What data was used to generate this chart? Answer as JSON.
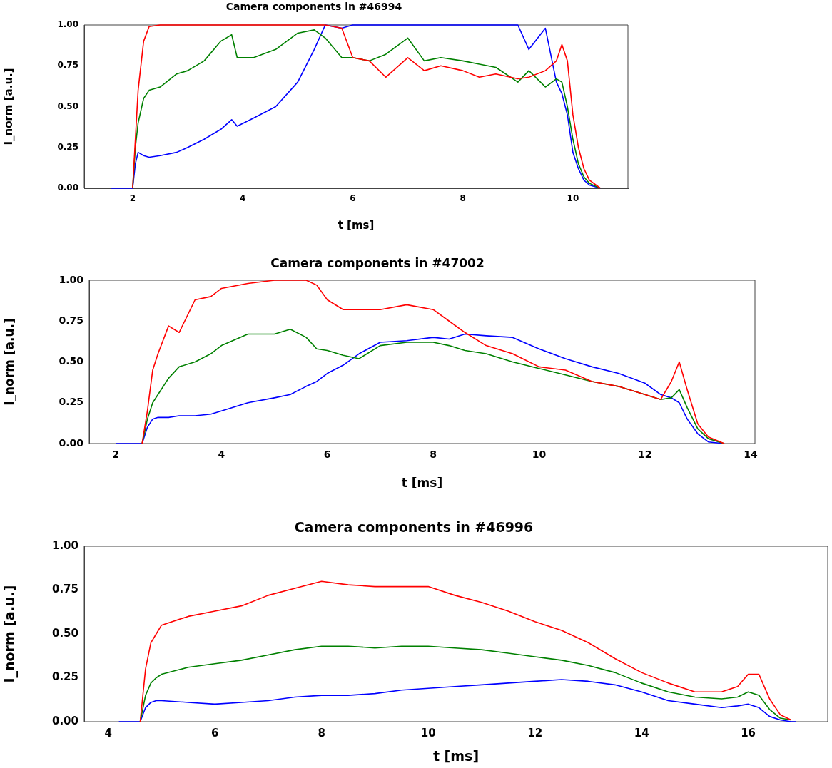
{
  "chart_data": [
    {
      "type": "line",
      "title": "Camera components in #46994",
      "xlabel": "t [ms]",
      "ylabel": "I_norm [a.u.]",
      "marker": "none",
      "line_style": "solid",
      "grid": false,
      "legend": false,
      "x": [
        1.6,
        2.0,
        2.05,
        2.1,
        2.2,
        2.3,
        2.5,
        2.8,
        3.0,
        3.3,
        3.6,
        3.8,
        3.9,
        4.2,
        4.6,
        5.0,
        5.3,
        5.5,
        5.8,
        6.0,
        6.3,
        6.6,
        7.0,
        7.3,
        7.6,
        8.0,
        8.3,
        8.6,
        9.0,
        9.2,
        9.5,
        9.7,
        9.8,
        9.9,
        10.0,
        10.1,
        10.2,
        10.3,
        10.5
      ],
      "xlim": [
        1.12,
        11.0
      ],
      "xticks": [
        2,
        4,
        6,
        8,
        10
      ],
      "ylim": [
        0,
        1
      ],
      "yticks": [
        {
          "value": 0,
          "label": "0.00"
        },
        {
          "value": 0.25,
          "label": "0.25"
        },
        {
          "value": 0.5,
          "label": "0.50"
        },
        {
          "value": 0.75,
          "label": "0.75"
        },
        {
          "value": 1,
          "label": "1.00"
        }
      ],
      "series": [
        {
          "color": "#ff0000",
          "values": [
            null,
            0,
            0.3,
            0.6,
            0.9,
            0.99,
            1,
            1,
            1,
            1,
            1,
            1,
            1,
            1,
            1,
            1,
            1,
            1,
            0.98,
            0.8,
            0.78,
            0.68,
            0.8,
            0.72,
            0.75,
            0.72,
            0.68,
            0.7,
            0.67,
            0.68,
            0.72,
            0.78,
            0.88,
            0.78,
            0.45,
            0.25,
            0.12,
            0.05,
            0
          ]
        },
        {
          "color": "#008000",
          "values": [
            null,
            0,
            0.25,
            0.4,
            0.55,
            0.6,
            0.62,
            0.7,
            0.72,
            0.78,
            0.9,
            0.94,
            0.8,
            0.8,
            0.85,
            0.95,
            0.97,
            0.92,
            0.8,
            0.8,
            0.78,
            0.82,
            0.92,
            0.78,
            0.8,
            0.78,
            0.76,
            0.74,
            0.65,
            0.72,
            0.62,
            0.67,
            0.65,
            0.5,
            0.3,
            0.15,
            0.07,
            0.03,
            0
          ]
        },
        {
          "color": "#0000ff",
          "values": [
            0,
            0,
            0.15,
            0.22,
            0.2,
            0.19,
            0.2,
            0.22,
            0.25,
            0.3,
            0.36,
            0.42,
            0.38,
            0.43,
            0.5,
            0.65,
            0.85,
            1,
            0.98,
            1,
            1,
            1,
            1,
            1,
            1,
            1,
            1,
            1,
            1,
            0.85,
            0.98,
            0.65,
            0.58,
            0.45,
            0.22,
            0.12,
            0.05,
            0.02,
            0
          ]
        }
      ]
    },
    {
      "type": "line",
      "title": "Camera components in #47002",
      "xlabel": "t [ms]",
      "ylabel": "I_norm [a.u.]",
      "marker": "none",
      "line_style": "solid",
      "grid": false,
      "legend": false,
      "x": [
        2.0,
        2.5,
        2.6,
        2.7,
        2.8,
        3.0,
        3.2,
        3.5,
        3.8,
        4.0,
        4.5,
        5.0,
        5.3,
        5.6,
        5.8,
        6.0,
        6.3,
        6.6,
        7.0,
        7.5,
        8.0,
        8.3,
        8.6,
        9.0,
        9.5,
        10.0,
        10.5,
        11.0,
        11.5,
        12.0,
        12.3,
        12.5,
        12.65,
        12.8,
        13.0,
        13.2,
        13.5
      ],
      "xlim": [
        1.5,
        14.08
      ],
      "xticks": [
        2,
        4,
        6,
        8,
        10,
        12,
        14
      ],
      "ylim": [
        0,
        1
      ],
      "yticks": [
        {
          "value": 0,
          "label": "0.00"
        },
        {
          "value": 0.25,
          "label": "0.25"
        },
        {
          "value": 0.5,
          "label": "0.50"
        },
        {
          "value": 0.75,
          "label": "0.75"
        },
        {
          "value": 1,
          "label": "1.00"
        }
      ],
      "series": [
        {
          "color": "#ff0000",
          "values": [
            null,
            0,
            0.2,
            0.45,
            0.55,
            0.72,
            0.68,
            0.88,
            0.9,
            0.95,
            0.98,
            1,
            1,
            1,
            0.97,
            0.88,
            0.82,
            0.82,
            0.82,
            0.85,
            0.82,
            0.75,
            0.68,
            0.6,
            0.55,
            0.47,
            0.45,
            0.38,
            0.35,
            0.3,
            0.27,
            0.38,
            0.5,
            0.33,
            0.12,
            0.04,
            0
          ]
        },
        {
          "color": "#008000",
          "values": [
            null,
            0,
            0.15,
            0.25,
            0.3,
            0.4,
            0.47,
            0.5,
            0.55,
            0.6,
            0.67,
            0.67,
            0.7,
            0.65,
            0.58,
            0.57,
            0.54,
            0.52,
            0.6,
            0.62,
            0.62,
            0.6,
            0.57,
            0.55,
            0.5,
            0.46,
            0.42,
            0.38,
            0.35,
            0.3,
            0.27,
            0.28,
            0.33,
            0.22,
            0.09,
            0.03,
            0
          ]
        },
        {
          "color": "#0000ff",
          "values": [
            0,
            0,
            0.1,
            0.15,
            0.16,
            0.16,
            0.17,
            0.17,
            0.18,
            0.2,
            0.25,
            0.28,
            0.3,
            0.35,
            0.38,
            0.43,
            0.48,
            0.55,
            0.62,
            0.63,
            0.65,
            0.64,
            0.67,
            0.66,
            0.65,
            0.58,
            0.52,
            0.47,
            0.43,
            0.37,
            0.3,
            0.28,
            0.25,
            0.15,
            0.06,
            0.01,
            0
          ]
        }
      ]
    },
    {
      "type": "line",
      "title": "Camera components in #46996",
      "xlabel": "t [ms]",
      "ylabel": "I_norm [a.u.]",
      "marker": "none",
      "line_style": "solid",
      "grid": false,
      "legend": false,
      "x": [
        4.2,
        4.6,
        4.7,
        4.8,
        4.9,
        5.0,
        5.5,
        6.0,
        6.5,
        7.0,
        7.5,
        8.0,
        8.5,
        9.0,
        9.5,
        10.0,
        10.5,
        11.0,
        11.5,
        12.0,
        12.5,
        13.0,
        13.5,
        14.0,
        14.5,
        15.0,
        15.5,
        15.8,
        16.0,
        16.2,
        16.4,
        16.6,
        16.8,
        16.9
      ],
      "xlim": [
        3.55,
        17.49
      ],
      "xticks": [
        4,
        6,
        8,
        10,
        12,
        14,
        16
      ],
      "ylim": [
        0,
        1
      ],
      "yticks": [
        {
          "value": 0,
          "label": "0.00"
        },
        {
          "value": 0.25,
          "label": "0.25"
        },
        {
          "value": 0.5,
          "label": "0.50"
        },
        {
          "value": 0.75,
          "label": "0.75"
        },
        {
          "value": 1,
          "label": "1.00"
        }
      ],
      "series": [
        {
          "color": "#ff0000",
          "values": [
            null,
            0,
            0.3,
            0.45,
            0.5,
            0.55,
            0.6,
            0.63,
            0.66,
            0.72,
            0.76,
            0.8,
            0.78,
            0.77,
            0.77,
            0.77,
            0.72,
            0.68,
            0.63,
            0.57,
            0.52,
            0.45,
            0.36,
            0.28,
            0.22,
            0.17,
            0.17,
            0.2,
            0.27,
            0.27,
            0.13,
            0.04,
            0.01,
            null
          ]
        },
        {
          "color": "#008000",
          "values": [
            null,
            0,
            0.15,
            0.22,
            0.25,
            0.27,
            0.31,
            0.33,
            0.35,
            0.38,
            0.41,
            0.43,
            0.43,
            0.42,
            0.43,
            0.43,
            0.42,
            0.41,
            0.39,
            0.37,
            0.35,
            0.32,
            0.28,
            0.22,
            0.17,
            0.14,
            0.13,
            0.14,
            0.17,
            0.15,
            0.07,
            0.02,
            0.01,
            null
          ]
        },
        {
          "color": "#0000ff",
          "values": [
            0,
            0,
            0.08,
            0.11,
            0.12,
            0.12,
            0.11,
            0.1,
            0.11,
            0.12,
            0.14,
            0.15,
            0.15,
            0.16,
            0.18,
            0.19,
            0.2,
            0.21,
            0.22,
            0.23,
            0.24,
            0.23,
            0.21,
            0.17,
            0.12,
            0.1,
            0.08,
            0.09,
            0.1,
            0.08,
            0.03,
            0.01,
            0,
            0
          ]
        }
      ]
    }
  ]
}
